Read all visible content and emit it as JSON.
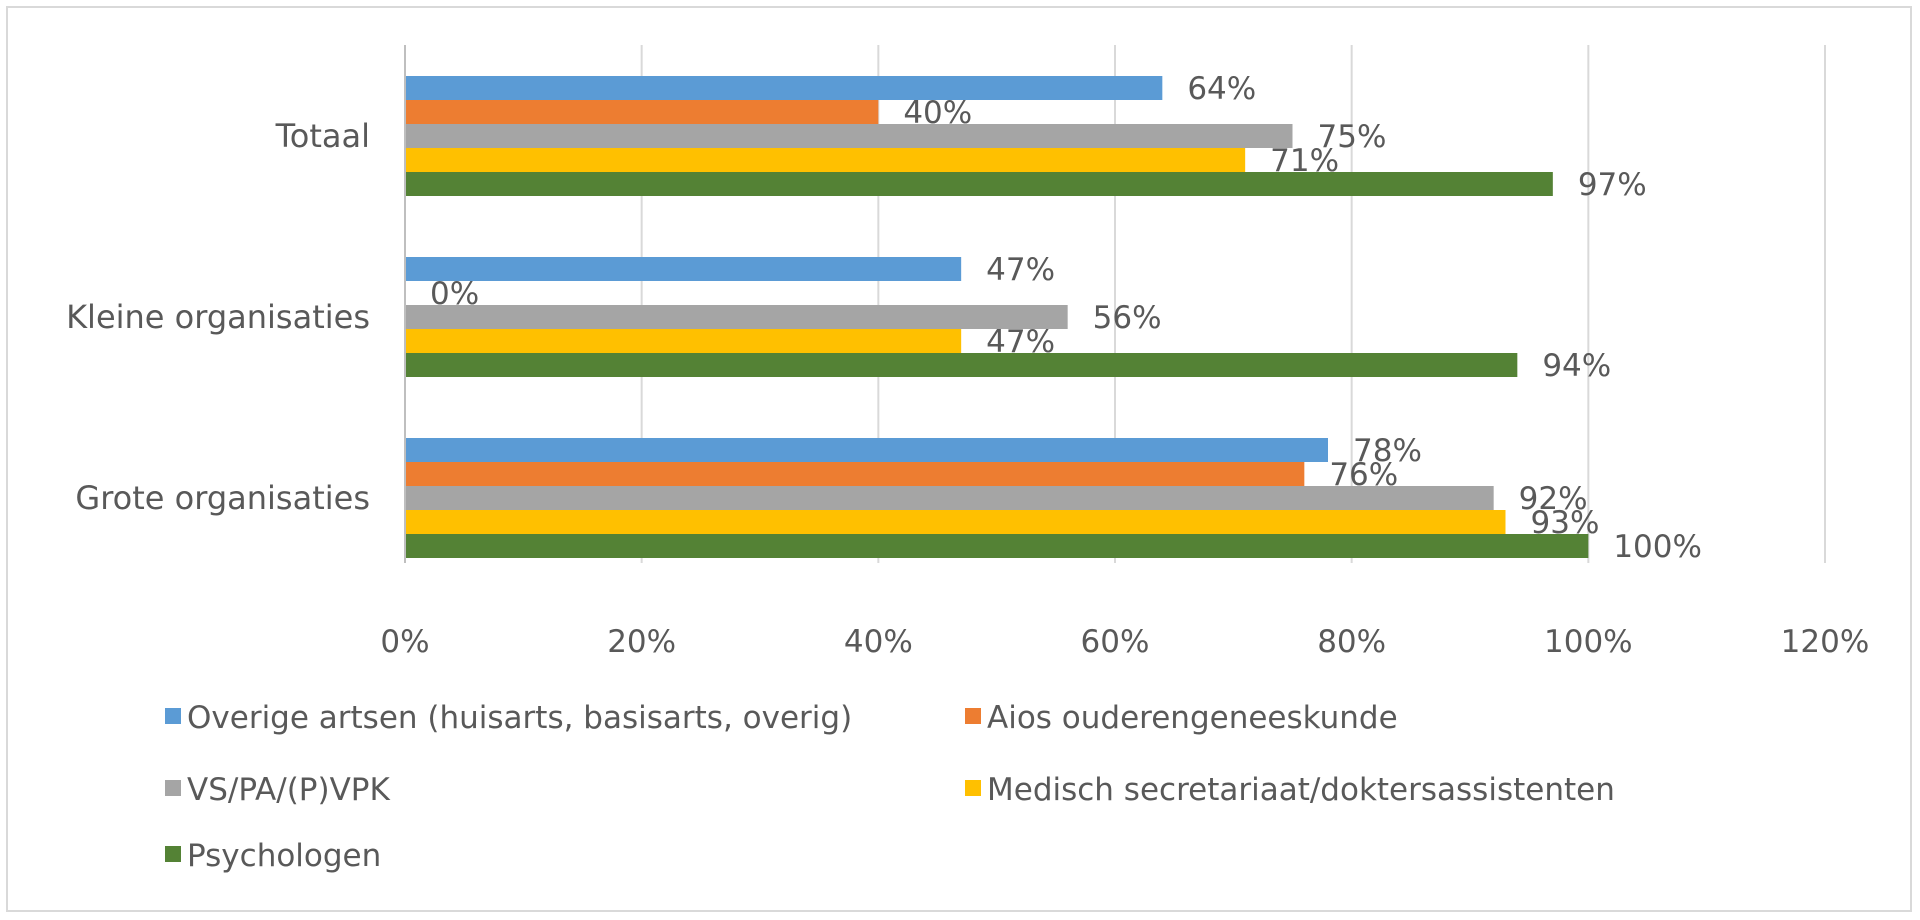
{
  "chart_data": {
    "type": "bar",
    "orientation": "horizontal",
    "title": "",
    "xlabel": "",
    "ylabel": "",
    "categories": [
      "Totaal",
      "Kleine organisaties",
      "Grote organisaties"
    ],
    "xlim": [
      0,
      120
    ],
    "x_ticks": [
      "0%",
      "20%",
      "40%",
      "60%",
      "80%",
      "100%",
      "120%"
    ],
    "grid": "vertical",
    "legend_position": "bottom",
    "series": [
      {
        "name": "Overige artsen (huisarts, basisarts, overig)",
        "color": "#5b9bd5",
        "values": [
          64,
          47,
          78
        ],
        "labels": [
          "64%",
          "47%",
          "78%"
        ]
      },
      {
        "name": "Aios ouderengeneeskunde",
        "color": "#ed7d31",
        "values": [
          40,
          0,
          76
        ],
        "labels": [
          "40%",
          "0%",
          "76%"
        ]
      },
      {
        "name": "VS/PA/(P)VPK",
        "color": "#a5a5a5",
        "values": [
          75,
          56,
          92
        ],
        "labels": [
          "75%",
          "56%",
          "92%"
        ]
      },
      {
        "name": "Medisch secretariaat/doktersassistenten",
        "color": "#ffc000",
        "values": [
          71,
          47,
          93
        ],
        "labels": [
          "71%",
          "47%",
          "93%"
        ]
      },
      {
        "name": "Psychologen",
        "color": "#548235",
        "values": [
          97,
          94,
          100
        ],
        "labels": [
          "97%",
          "94%",
          "100%"
        ]
      }
    ]
  }
}
